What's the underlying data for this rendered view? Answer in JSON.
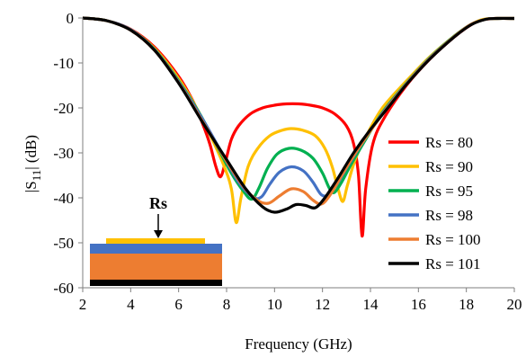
{
  "chart_data": {
    "type": "line",
    "xlabel": "Frequency (GHz)",
    "ylabel_prefix": "|S",
    "ylabel_sub": "11",
    "ylabel_suffix": "| (dB)",
    "xlim": [
      2,
      20
    ],
    "ylim": [
      -60,
      0
    ],
    "xticks": [
      2,
      4,
      6,
      8,
      10,
      12,
      14,
      16,
      18,
      20
    ],
    "yticks": [
      0,
      -10,
      -20,
      -30,
      -40,
      -50,
      -60
    ],
    "grid": false,
    "legend_position": "right",
    "series": [
      {
        "name": "Rs = 80",
        "color": "#ff0000",
        "points": [
          [
            2,
            0
          ],
          [
            3,
            -0.6
          ],
          [
            4,
            -2.5
          ],
          [
            5,
            -6.5
          ],
          [
            6,
            -13
          ],
          [
            6.6,
            -18.5
          ],
          [
            7,
            -23.5
          ],
          [
            7.3,
            -28
          ],
          [
            7.55,
            -33
          ],
          [
            7.75,
            -35.3
          ],
          [
            7.95,
            -32
          ],
          [
            8.2,
            -27
          ],
          [
            8.5,
            -24
          ],
          [
            9,
            -21.3
          ],
          [
            9.5,
            -20
          ],
          [
            10,
            -19.4
          ],
          [
            10.5,
            -19.1
          ],
          [
            11,
            -19.1
          ],
          [
            11.5,
            -19.4
          ],
          [
            12,
            -20
          ],
          [
            12.5,
            -21.3
          ],
          [
            13,
            -24
          ],
          [
            13.3,
            -28
          ],
          [
            13.5,
            -35
          ],
          [
            13.65,
            -48.5
          ],
          [
            13.8,
            -38
          ],
          [
            14.1,
            -28
          ],
          [
            14.6,
            -22
          ],
          [
            15.5,
            -15
          ],
          [
            16.5,
            -9
          ],
          [
            17.5,
            -4.2
          ],
          [
            18.2,
            -1.5
          ],
          [
            18.7,
            -0.4
          ],
          [
            19.2,
            -0.1
          ],
          [
            20,
            -0.1
          ]
        ]
      },
      {
        "name": "Rs = 90",
        "color": "#ffc000",
        "points": [
          [
            2,
            0
          ],
          [
            3,
            -0.6
          ],
          [
            4,
            -2.6
          ],
          [
            5,
            -6.8
          ],
          [
            6,
            -13.5
          ],
          [
            6.8,
            -20.5
          ],
          [
            7.4,
            -27
          ],
          [
            7.9,
            -33
          ],
          [
            8.2,
            -38
          ],
          [
            8.4,
            -45.5
          ],
          [
            8.6,
            -40
          ],
          [
            8.9,
            -33
          ],
          [
            9.3,
            -29
          ],
          [
            9.8,
            -26.2
          ],
          [
            10.3,
            -25
          ],
          [
            10.7,
            -24.6
          ],
          [
            11.2,
            -25
          ],
          [
            11.7,
            -26.2
          ],
          [
            12.1,
            -29
          ],
          [
            12.4,
            -33
          ],
          [
            12.65,
            -38
          ],
          [
            12.85,
            -40.8
          ],
          [
            13.05,
            -37
          ],
          [
            13.4,
            -31
          ],
          [
            13.9,
            -25.5
          ],
          [
            14.5,
            -20
          ],
          [
            15.5,
            -14
          ],
          [
            16.5,
            -8.5
          ],
          [
            17.5,
            -4
          ],
          [
            18.2,
            -1.4
          ],
          [
            18.7,
            -0.3
          ],
          [
            19.3,
            -0.1
          ],
          [
            20,
            -0.1
          ]
        ]
      },
      {
        "name": "Rs = 95",
        "color": "#00b050",
        "points": [
          [
            2,
            0
          ],
          [
            3,
            -0.6
          ],
          [
            4,
            -2.6
          ],
          [
            5,
            -7
          ],
          [
            6,
            -14
          ],
          [
            6.9,
            -21.5
          ],
          [
            7.6,
            -28.5
          ],
          [
            8.2,
            -34.5
          ],
          [
            8.7,
            -38.5
          ],
          [
            9.05,
            -40.3
          ],
          [
            9.35,
            -37.8
          ],
          [
            9.7,
            -33.5
          ],
          [
            10.1,
            -30.3
          ],
          [
            10.6,
            -29
          ],
          [
            11.1,
            -29.4
          ],
          [
            11.6,
            -31.2
          ],
          [
            12,
            -34.5
          ],
          [
            12.3,
            -38
          ],
          [
            12.5,
            -38.8
          ],
          [
            12.8,
            -36.5
          ],
          [
            13.2,
            -32.5
          ],
          [
            13.8,
            -27
          ],
          [
            14.5,
            -21
          ],
          [
            15.5,
            -14.5
          ],
          [
            16.5,
            -8.7
          ],
          [
            17.5,
            -4
          ],
          [
            18.2,
            -1.4
          ],
          [
            18.8,
            -0.3
          ],
          [
            19.3,
            -0.1
          ],
          [
            20,
            -0.1
          ]
        ]
      },
      {
        "name": "Rs = 98",
        "color": "#4472c4",
        "points": [
          [
            2,
            0
          ],
          [
            3,
            -0.6
          ],
          [
            4,
            -2.6
          ],
          [
            5,
            -7.1
          ],
          [
            6,
            -14.2
          ],
          [
            7,
            -22.5
          ],
          [
            7.8,
            -30
          ],
          [
            8.5,
            -36.5
          ],
          [
            9.1,
            -39.8
          ],
          [
            9.45,
            -39.8
          ],
          [
            9.8,
            -37
          ],
          [
            10.2,
            -34.3
          ],
          [
            10.7,
            -33.1
          ],
          [
            11.2,
            -34
          ],
          [
            11.6,
            -36.5
          ],
          [
            11.95,
            -39.3
          ],
          [
            12.25,
            -39.3
          ],
          [
            12.6,
            -37
          ],
          [
            13.1,
            -32.5
          ],
          [
            13.7,
            -27.5
          ],
          [
            14.5,
            -21.2
          ],
          [
            15.5,
            -14.6
          ],
          [
            16.5,
            -8.8
          ],
          [
            17.5,
            -4.1
          ],
          [
            18.2,
            -1.4
          ],
          [
            18.8,
            -0.3
          ],
          [
            19.3,
            -0.1
          ],
          [
            20,
            -0.1
          ]
        ]
      },
      {
        "name": "Rs = 100",
        "color": "#ed7d31",
        "points": [
          [
            2,
            0
          ],
          [
            3,
            -0.6
          ],
          [
            4,
            -2.7
          ],
          [
            5,
            -7.2
          ],
          [
            6,
            -14.4
          ],
          [
            7,
            -23
          ],
          [
            7.9,
            -31
          ],
          [
            8.7,
            -37.5
          ],
          [
            9.3,
            -40.6
          ],
          [
            9.75,
            -41.2
          ],
          [
            10.2,
            -39.6
          ],
          [
            10.7,
            -38
          ],
          [
            11.2,
            -38.6
          ],
          [
            11.6,
            -40.5
          ],
          [
            11.95,
            -41.4
          ],
          [
            12.3,
            -39.5
          ],
          [
            12.8,
            -35
          ],
          [
            13.5,
            -29
          ],
          [
            14.5,
            -21.4
          ],
          [
            15.5,
            -14.7
          ],
          [
            16.5,
            -8.9
          ],
          [
            17.5,
            -4.1
          ],
          [
            18.2,
            -1.4
          ],
          [
            18.8,
            -0.3
          ],
          [
            19.3,
            -0.1
          ],
          [
            20,
            -0.1
          ]
        ]
      },
      {
        "name": "Rs = 101",
        "color": "#000000",
        "points": [
          [
            2,
            0
          ],
          [
            3,
            -0.6
          ],
          [
            4,
            -2.7
          ],
          [
            5,
            -7.2
          ],
          [
            6,
            -14.5
          ],
          [
            7,
            -23.2
          ],
          [
            8,
            -31.5
          ],
          [
            8.8,
            -38
          ],
          [
            9.5,
            -42
          ],
          [
            10,
            -43.2
          ],
          [
            10.5,
            -42.5
          ],
          [
            10.9,
            -41.5
          ],
          [
            11.3,
            -41.7
          ],
          [
            11.7,
            -42.2
          ],
          [
            12.1,
            -40
          ],
          [
            12.6,
            -36
          ],
          [
            13.3,
            -30
          ],
          [
            14,
            -24.8
          ],
          [
            14.8,
            -19.5
          ],
          [
            15.5,
            -14.8
          ],
          [
            16.5,
            -9
          ],
          [
            17.5,
            -4.2
          ],
          [
            18.2,
            -1.5
          ],
          [
            18.8,
            -0.3
          ],
          [
            19.3,
            -0.1
          ],
          [
            20,
            -0.1
          ]
        ]
      }
    ]
  },
  "inset": {
    "label": "Rs",
    "layers": {
      "resistive": "#ffc000",
      "top": "#4472c4",
      "substrate": "#ed7d31",
      "ground": "#000000"
    }
  }
}
